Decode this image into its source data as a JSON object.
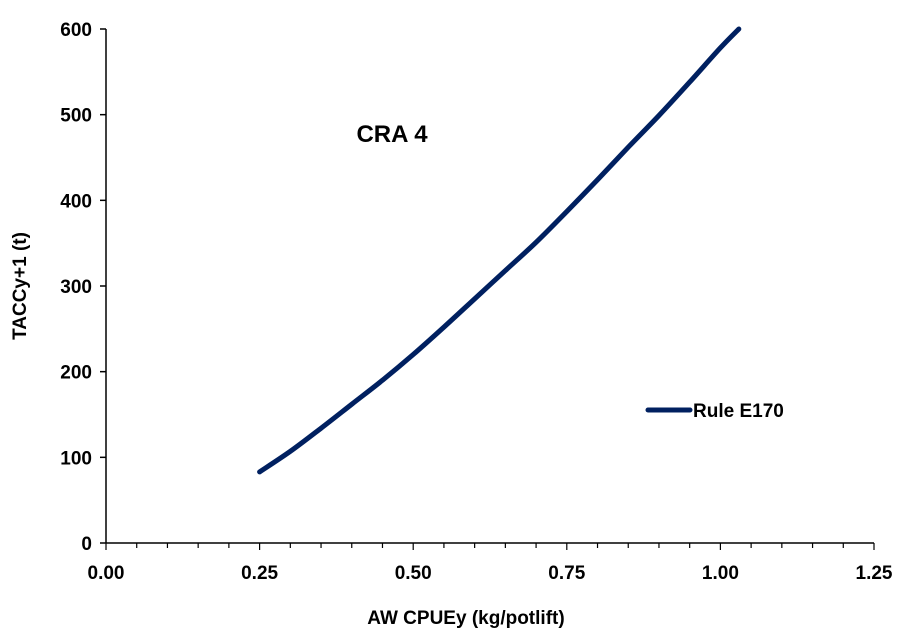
{
  "chart_data": {
    "type": "line",
    "title": "CRA 4",
    "xlabel": "AW CPUEy (kg/potlift)",
    "ylabel": "TACCy+1 (t)",
    "xlim": [
      0,
      1.25
    ],
    "ylim": [
      0,
      600
    ],
    "x_ticks": [
      "0.00",
      "0.25",
      "0.50",
      "0.75",
      "1.00",
      "1.25"
    ],
    "y_ticks": [
      "0",
      "100",
      "200",
      "300",
      "400",
      "500",
      "600"
    ],
    "grid": false,
    "legend_position": "right",
    "series": [
      {
        "name": "Rule E170",
        "color": "#002060",
        "x": [
          0.25,
          0.3,
          0.35,
          0.4,
          0.45,
          0.5,
          0.55,
          0.6,
          0.65,
          0.7,
          0.75,
          0.8,
          0.85,
          0.9,
          0.95,
          1.0,
          1.03
        ],
        "y": [
          83,
          107,
          134,
          162,
          190,
          220,
          252,
          285,
          318,
          351,
          387,
          424,
          462,
          499,
          538,
          578,
          600
        ]
      }
    ]
  }
}
